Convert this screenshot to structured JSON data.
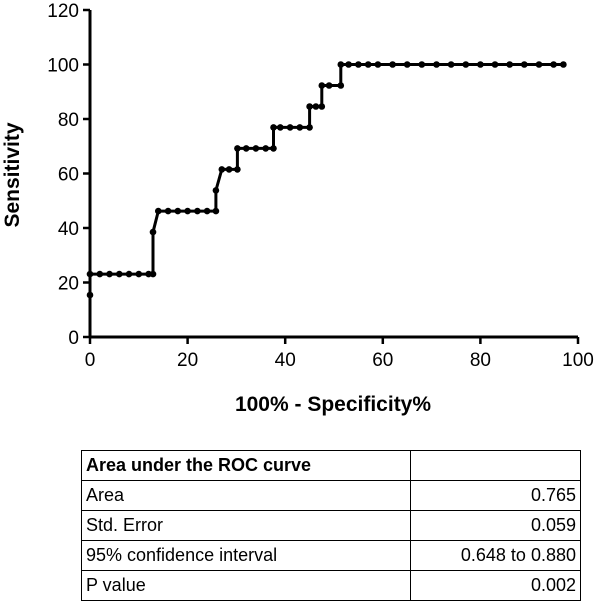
{
  "chart_data": {
    "type": "line",
    "title": "",
    "xlabel": "100% - Specificity%",
    "ylabel": "Sensitivity",
    "xlim": [
      0,
      100
    ],
    "ylim": [
      0,
      120
    ],
    "xticks": [
      0,
      20,
      40,
      60,
      80,
      100
    ],
    "yticks": [
      0,
      20,
      40,
      60,
      80,
      100,
      120
    ],
    "grid": false,
    "line_color": "#000000",
    "series": [
      {
        "x": [
          0,
          0,
          2,
          4,
          6,
          8,
          10,
          12,
          12.9,
          12.9,
          14,
          16,
          18,
          20,
          22,
          24,
          25.8,
          25.8,
          27,
          28.5,
          30.2,
          30.2,
          32,
          34,
          36,
          37.6,
          37.6,
          39,
          41,
          43,
          45,
          45,
          46.3,
          47.5,
          47.5,
          49,
          51.4,
          51.4,
          53,
          55,
          57,
          59,
          62,
          65,
          68,
          71,
          74,
          77,
          80,
          83,
          86,
          89,
          92,
          95,
          97
        ],
        "y": [
          15.4,
          23.1,
          23.1,
          23.1,
          23.1,
          23.1,
          23.1,
          23.1,
          23.1,
          38.5,
          46.2,
          46.2,
          46.2,
          46.2,
          46.2,
          46.2,
          46.2,
          53.8,
          61.5,
          61.5,
          61.5,
          69.2,
          69.2,
          69.2,
          69.2,
          69.2,
          76.9,
          76.9,
          76.9,
          76.9,
          76.9,
          84.6,
          84.6,
          84.6,
          92.3,
          92.3,
          92.3,
          100,
          100,
          100,
          100,
          100,
          100,
          100,
          100,
          100,
          100,
          100,
          100,
          100,
          100,
          100,
          100,
          100,
          100
        ]
      }
    ]
  },
  "table": {
    "header": "Area under the ROC curve",
    "rows": [
      {
        "label": "Area",
        "value": "0.765"
      },
      {
        "label": "Std. Error",
        "value": "0.059"
      },
      {
        "label": "95% confidence interval",
        "value": "0.648 to 0.880"
      },
      {
        "label": "P value",
        "value": "0.002"
      }
    ]
  }
}
